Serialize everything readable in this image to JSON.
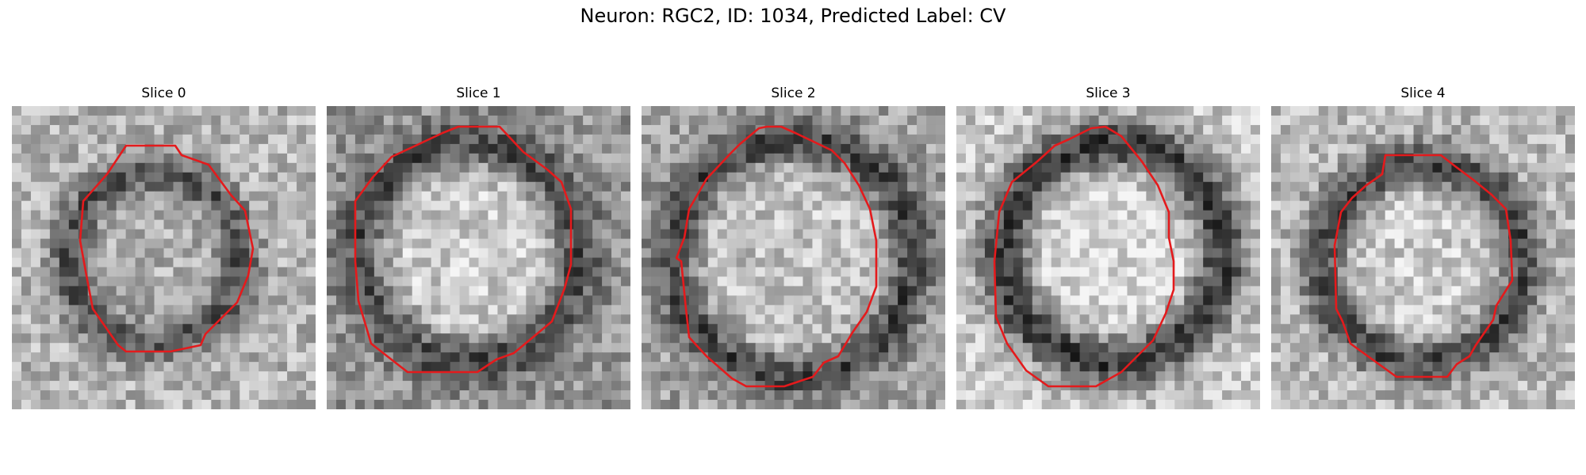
{
  "figure": {
    "title": "Neuron: RGC2, ID: 1034, Predicted Label: CV",
    "panels": [
      {
        "label": "Slice 0"
      },
      {
        "label": "Slice 1"
      },
      {
        "label": "Slice 2"
      },
      {
        "label": "Slice 3"
      },
      {
        "label": "Slice 4"
      }
    ],
    "contour_color": "#e41a1c"
  }
}
